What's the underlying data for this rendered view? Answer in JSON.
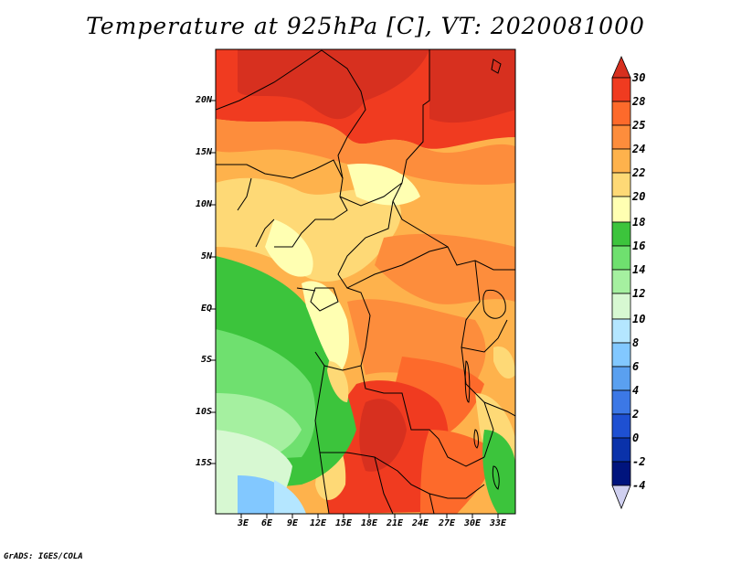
{
  "title": "Temperature at 925hPa [C], VT: 2020081000",
  "footer": "GrADS: IGES/COLA",
  "map": {
    "lat_ticks": [
      "20N",
      "15N",
      "10N",
      "5N",
      "EQ",
      "5S",
      "10S",
      "15S"
    ],
    "lon_ticks": [
      "3E",
      "6E",
      "9E",
      "12E",
      "15E",
      "18E",
      "21E",
      "24E",
      "27E",
      "30E",
      "33E"
    ]
  },
  "colorbar": {
    "labels": [
      "30",
      "28",
      "25",
      "24",
      "22",
      "20",
      "18",
      "16",
      "14",
      "12",
      "10",
      "8",
      "6",
      "4",
      "2",
      "0",
      "-2",
      "-4"
    ],
    "colors": {
      "c_top": "#d7301f",
      "c28": "#f03b20",
      "c25": "#fd6a2b",
      "c24": "#fd8d3c",
      "c22": "#feb24c",
      "c20": "#fed976",
      "c18": "#ffffb2",
      "c16": "#3cc43c",
      "c14": "#6fe06f",
      "c12": "#a5f0a0",
      "c10": "#d7f8d2",
      "c8": "#b4e6ff",
      "c6": "#82c8ff",
      "c4": "#5aa0f0",
      "c2": "#3c78e6",
      "c0": "#1e50d2",
      "cm2": "#0a32aa",
      "cm4": "#00147d",
      "c_bottom": "#d0d0f0"
    }
  }
}
